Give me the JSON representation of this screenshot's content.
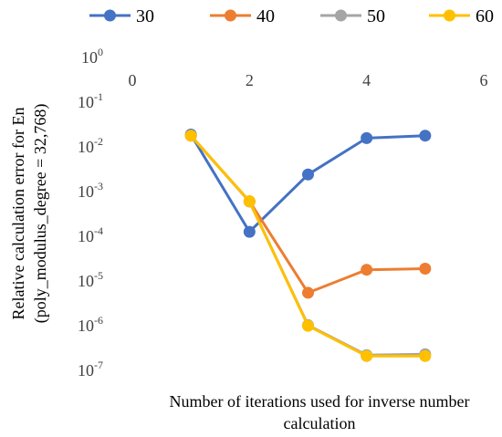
{
  "chart_data": {
    "type": "line",
    "title": "",
    "xlabel_lines": [
      "Number of iterations used for inverse number",
      "calculation"
    ],
    "ylabel_lines": [
      "Relative calculation error for En",
      "(poly_modulus_degree = 32,768)"
    ],
    "x_ticks": [
      "0",
      "2",
      "4",
      "6"
    ],
    "xlim": [
      0,
      6
    ],
    "y_scale": "log",
    "ylim": [
      1e-07,
      1
    ],
    "y_ticks": [
      {
        "base": "10",
        "exp": "0"
      },
      {
        "base": "10",
        "exp": "-1"
      },
      {
        "base": "10",
        "exp": "-2"
      },
      {
        "base": "10",
        "exp": "-3"
      },
      {
        "base": "10",
        "exp": "-4"
      },
      {
        "base": "10",
        "exp": "-5"
      },
      {
        "base": "10",
        "exp": "-6"
      },
      {
        "base": "10",
        "exp": "-7"
      }
    ],
    "legend_position": "top",
    "grid": false,
    "series": [
      {
        "name": "30",
        "color": "#4472C4",
        "x": [
          1,
          2,
          3,
          4,
          5
        ],
        "y": [
          0.018,
          0.00012,
          0.0023,
          0.015,
          0.017
        ]
      },
      {
        "name": "40",
        "color": "#ED7D31",
        "x": [
          1,
          2,
          3,
          4,
          5
        ],
        "y": [
          0.017,
          0.00058,
          5.2e-06,
          1.7e-05,
          1.8e-05
        ]
      },
      {
        "name": "50",
        "color": "#A5A5A5",
        "x": [
          1,
          2,
          3,
          4,
          5
        ],
        "y": [
          0.017,
          0.00057,
          9.8e-07,
          2.1e-07,
          2.2e-07
        ]
      },
      {
        "name": "60",
        "color": "#FFC000",
        "x": [
          1,
          2,
          3,
          4,
          5
        ],
        "y": [
          0.017,
          0.00058,
          9.5e-07,
          2e-07,
          2e-07
        ]
      }
    ]
  }
}
